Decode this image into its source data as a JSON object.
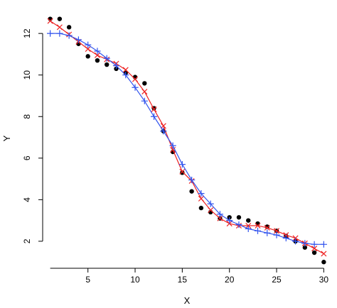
{
  "chart_data": {
    "type": "scatter",
    "title": "",
    "xlabel": "X",
    "ylabel": "Y",
    "xlim": [
      0.2,
      30.8
    ],
    "ylim": [
      0.7,
      13.2
    ],
    "x_ticks": [
      5,
      10,
      15,
      20,
      25,
      30
    ],
    "y_ticks": [
      2,
      4,
      6,
      8,
      10,
      12
    ],
    "grid": false,
    "legend": "none",
    "series": [
      {
        "marker": "filled-circle",
        "color": "#000000",
        "x": [
          1,
          2,
          3,
          4,
          5,
          6,
          7,
          8,
          9,
          10,
          11,
          12,
          13,
          14,
          15,
          16,
          17,
          18,
          19,
          20,
          21,
          22,
          23,
          24,
          25,
          26,
          27,
          28,
          29,
          30
        ],
        "y": [
          12.7,
          12.7,
          12.3,
          11.5,
          10.9,
          10.7,
          10.5,
          10.3,
          10.1,
          9.9,
          9.6,
          8.4,
          7.3,
          6.3,
          5.3,
          4.4,
          3.6,
          3.4,
          3.1,
          3.15,
          3.15,
          3.0,
          2.85,
          2.7,
          2.5,
          2.25,
          2.0,
          1.7,
          1.45,
          1.0
        ]
      },
      {
        "marker": "x",
        "line": true,
        "color": "#ee2222",
        "x": [
          1,
          2,
          3,
          4,
          5,
          6,
          7,
          8,
          9,
          10,
          11,
          12,
          13,
          14,
          15,
          16,
          17,
          18,
          19,
          20,
          21,
          22,
          23,
          24,
          25,
          26,
          27,
          28,
          29,
          30
        ],
        "y": [
          12.6,
          12.3,
          11.95,
          11.6,
          11.25,
          10.95,
          10.75,
          10.55,
          10.25,
          9.8,
          9.2,
          8.35,
          7.55,
          6.4,
          5.35,
          4.9,
          4.05,
          3.5,
          3.1,
          2.85,
          2.75,
          2.75,
          2.75,
          2.65,
          2.5,
          2.3,
          2.15,
          1.9,
          1.65,
          1.4
        ]
      },
      {
        "marker": "plus",
        "line": true,
        "color": "#3355ee",
        "x": [
          1,
          2,
          3,
          4,
          5,
          6,
          7,
          8,
          9,
          10,
          11,
          12,
          13,
          14,
          15,
          16,
          17,
          18,
          19,
          20,
          21,
          22,
          23,
          24,
          25,
          26,
          27,
          28,
          29,
          30
        ],
        "y": [
          12.0,
          12.0,
          11.9,
          11.7,
          11.45,
          11.15,
          10.8,
          10.45,
          10.0,
          9.4,
          8.75,
          8.0,
          7.3,
          6.6,
          5.7,
          4.95,
          4.3,
          3.8,
          3.3,
          3.0,
          2.8,
          2.6,
          2.5,
          2.4,
          2.3,
          2.15,
          2.0,
          1.9,
          1.85,
          1.85
        ]
      }
    ]
  }
}
